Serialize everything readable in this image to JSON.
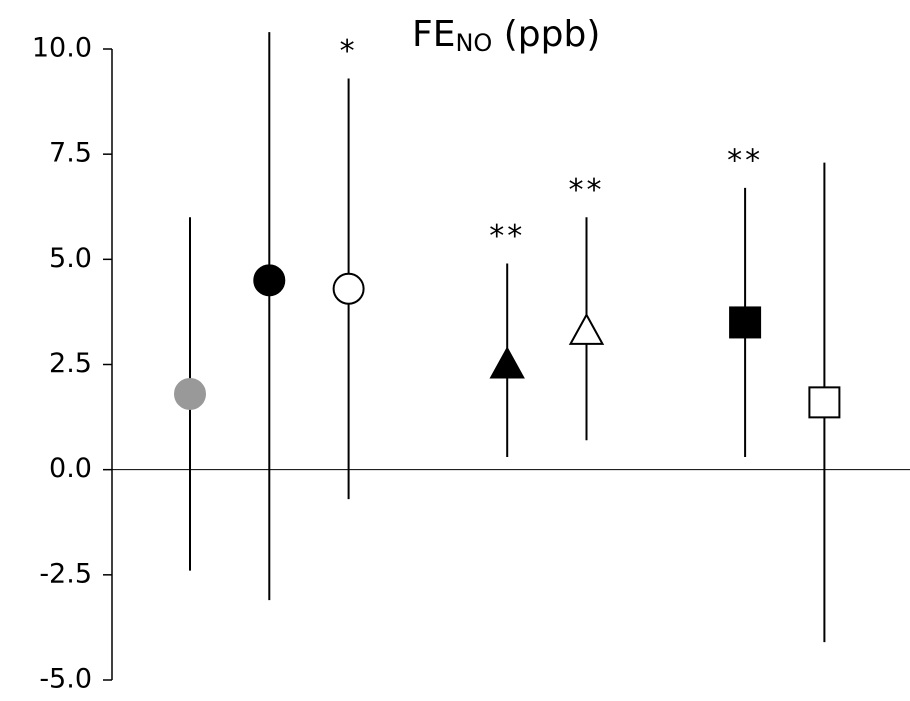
{
  "chart_data": {
    "type": "errorbar",
    "title_parts": [
      "FE",
      "NO",
      " (ppb)"
    ],
    "categories": [
      null,
      null,
      null,
      null,
      null,
      null,
      null,
      null,
      null
    ],
    "values": [
      1.8,
      4.5,
      4.3,
      null,
      2.5,
      3.3,
      null,
      3.5,
      1.6
    ],
    "lower": [
      -2.4,
      -3.1,
      -0.7,
      null,
      0.3,
      0.7,
      null,
      0.3,
      -4.1
    ],
    "upper": [
      6.0,
      10.4,
      9.3,
      null,
      4.9,
      6.0,
      null,
      6.7,
      7.3
    ],
    "markers": [
      {
        "shape": "circle",
        "fill": "#999999",
        "stroke": "#999999"
      },
      {
        "shape": "circle",
        "fill": "#000000",
        "stroke": "#000000"
      },
      {
        "shape": "circle",
        "fill": "#ffffff",
        "stroke": "#000000"
      },
      null,
      {
        "shape": "triangle",
        "fill": "#000000",
        "stroke": "#000000"
      },
      {
        "shape": "triangle",
        "fill": "#ffffff",
        "stroke": "#000000"
      },
      null,
      {
        "shape": "square",
        "fill": "#000000",
        "stroke": "#000000"
      },
      {
        "shape": "square",
        "fill": "#ffffff",
        "stroke": "#000000"
      }
    ],
    "annotations": [
      null,
      null,
      "*",
      null,
      "**",
      "**",
      null,
      "**",
      null
    ],
    "ylim": [
      -5.0,
      10.0
    ],
    "yticks": [
      {
        "value": -5,
        "label": "-5.0"
      },
      {
        "value": -2.5,
        "label": "-2.5"
      },
      {
        "value": 0,
        "label": "0.0"
      },
      {
        "value": 2.5,
        "label": "2.5"
      },
      {
        "value": 5,
        "label": "5.0"
      },
      {
        "value": 7.5,
        "label": "7.5"
      },
      {
        "value": 10,
        "label": "10.0"
      }
    ],
    "zero_line": true
  }
}
